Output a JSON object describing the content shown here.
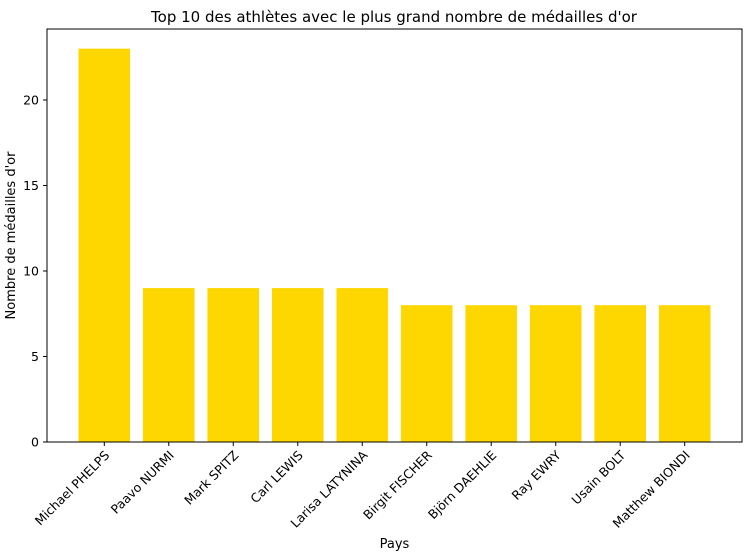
{
  "chart_data": {
    "type": "bar",
    "title": "Top 10 des athlètes avec le plus grand nombre de médailles d'or",
    "xlabel": "Pays",
    "ylabel": "Nombre de médailles d'or",
    "categories": [
      "Michael PHELPS",
      "Paavo NURMI",
      "Mark SPITZ",
      "Carl LEWIS",
      "Larisa LATYNINA",
      "Birgit FISCHER",
      "Björn DAEHLIE",
      "Ray EWRY",
      "Usain BOLT",
      "Matthew BIONDI"
    ],
    "values": [
      23,
      9,
      9,
      9,
      9,
      8,
      8,
      8,
      8,
      8
    ],
    "ylim": [
      0,
      24.15
    ],
    "yticks": [
      0,
      5,
      10,
      15,
      20
    ],
    "bar_color": "#FFD700",
    "grid": false,
    "legend": "none"
  }
}
